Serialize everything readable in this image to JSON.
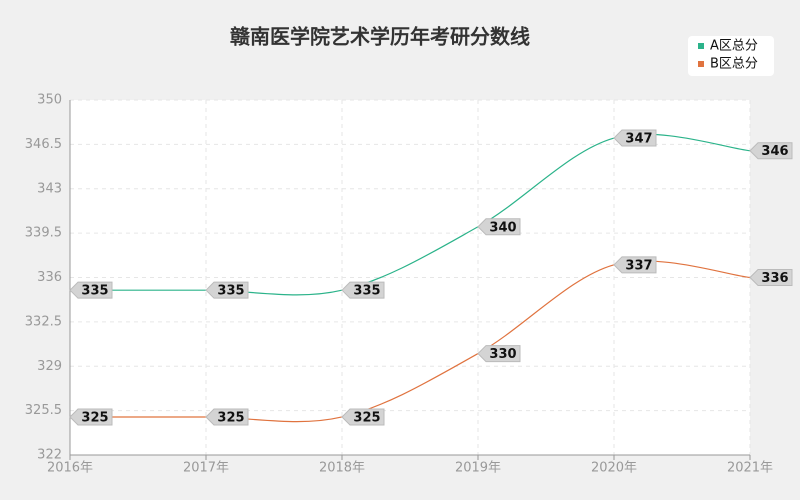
{
  "chart_data": {
    "type": "line",
    "title": "赣南医学院艺术学历年考研分数线",
    "categories": [
      "2016年",
      "2017年",
      "2018年",
      "2019年",
      "2020年",
      "2021年"
    ],
    "series": [
      {
        "name": "A区总分",
        "color": "#2bb38a",
        "values": [
          335,
          335,
          335,
          340,
          347,
          346
        ]
      },
      {
        "name": "B区总分",
        "color": "#e0733f",
        "values": [
          325,
          325,
          325,
          330,
          337,
          336
        ]
      }
    ],
    "ylim": [
      322,
      350
    ],
    "yticks": [
      322,
      325.5,
      329,
      332.5,
      336,
      339.5,
      343,
      346.5,
      350
    ],
    "grid": true,
    "legend": "top-right",
    "smooth": true
  }
}
